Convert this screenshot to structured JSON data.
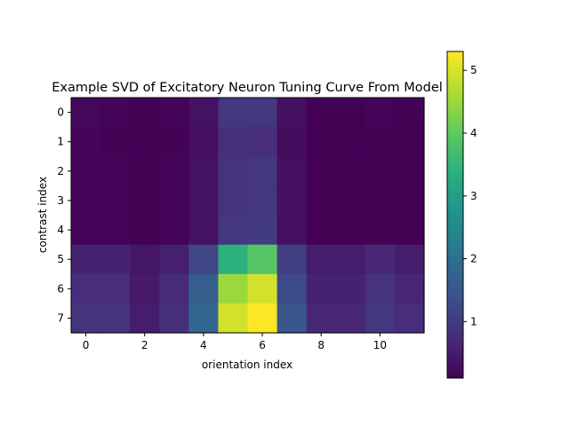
{
  "chart_data": {
    "type": "heatmap",
    "title": "Example SVD of Excitatory Neuron Tuning Curve From Model",
    "xlabel": "orientation index",
    "ylabel": "contrast index",
    "x_ticks": [
      0,
      2,
      4,
      6,
      8,
      10
    ],
    "y_ticks": [
      0,
      1,
      2,
      3,
      4,
      5,
      6,
      7
    ],
    "colormap": "viridis",
    "vmin": 0.1,
    "vmax": 5.3,
    "colorbar_ticks": [
      1,
      2,
      3,
      4,
      5
    ],
    "colorbar_tick_labels": [
      "1",
      "2",
      "3",
      "4",
      "5"
    ],
    "grid": false,
    "values": [
      [
        0.2,
        0.15,
        0.12,
        0.15,
        0.35,
        0.9,
        0.9,
        0.3,
        0.1,
        0.1,
        0.15,
        0.12
      ],
      [
        0.15,
        0.12,
        0.1,
        0.12,
        0.3,
        0.8,
        0.75,
        0.25,
        0.1,
        0.1,
        0.12,
        0.1
      ],
      [
        0.15,
        0.15,
        0.1,
        0.15,
        0.35,
        0.85,
        0.9,
        0.3,
        0.1,
        0.1,
        0.12,
        0.1
      ],
      [
        0.15,
        0.15,
        0.1,
        0.15,
        0.35,
        0.85,
        0.9,
        0.3,
        0.1,
        0.1,
        0.12,
        0.1
      ],
      [
        0.15,
        0.15,
        0.1,
        0.15,
        0.35,
        0.95,
        1.0,
        0.3,
        0.1,
        0.1,
        0.12,
        0.1
      ],
      [
        0.6,
        0.6,
        0.4,
        0.55,
        1.2,
        3.4,
        3.9,
        1.05,
        0.5,
        0.5,
        0.65,
        0.5
      ],
      [
        0.75,
        0.75,
        0.45,
        0.7,
        1.65,
        4.5,
        4.95,
        1.3,
        0.6,
        0.6,
        0.85,
        0.65
      ],
      [
        0.85,
        0.85,
        0.5,
        0.8,
        1.8,
        4.95,
        5.3,
        1.5,
        0.65,
        0.65,
        0.95,
        0.75
      ]
    ]
  }
}
